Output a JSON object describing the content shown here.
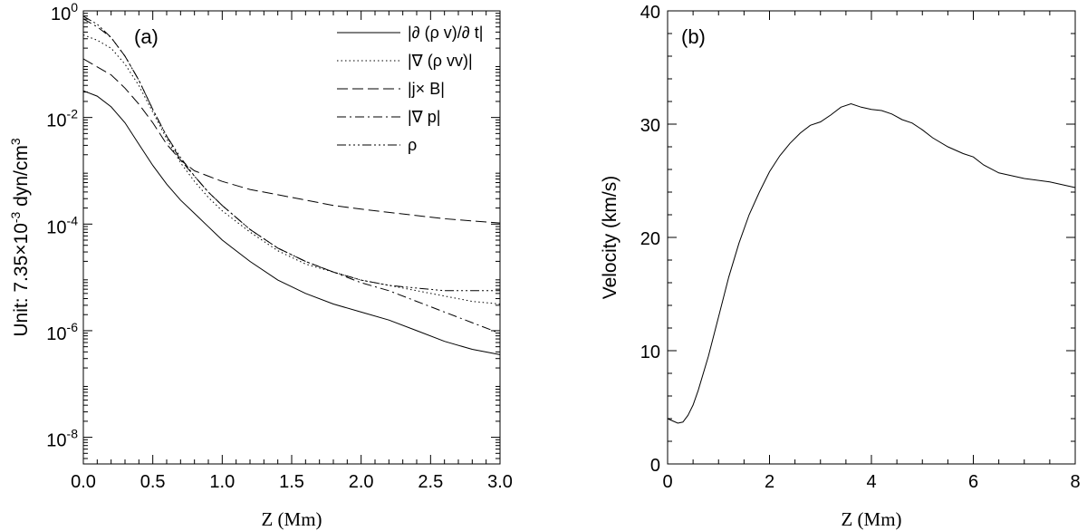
{
  "chart_data": [
    {
      "type": "line",
      "panel_label": "(a)",
      "xlabel": "Z (Mm)",
      "ylabel_prefix": "Unit: 7.35",
      "ylabel_times": "×",
      "ylabel_base": "10",
      "ylabel_exp": "-3",
      "ylabel_unit": " dyn/cm",
      "ylabel_unit_exp": "3",
      "xlim": [
        0,
        3
      ],
      "ylim_log10": [
        -8.5,
        0
      ],
      "yscale": "log",
      "x_ticks": [
        {
          "v": 0.0,
          "label": "0.0"
        },
        {
          "v": 0.5,
          "label": "0.5"
        },
        {
          "v": 1.0,
          "label": "1.0"
        },
        {
          "v": 1.5,
          "label": "1.5"
        },
        {
          "v": 2.0,
          "label": "2.0"
        },
        {
          "v": 2.5,
          "label": "2.5"
        },
        {
          "v": 3.0,
          "label": "3.0"
        }
      ],
      "y_ticks": [
        {
          "v": 0,
          "base": "10",
          "exp": "0"
        },
        {
          "v": -2,
          "base": "10",
          "exp": "-2"
        },
        {
          "v": -4,
          "base": "10",
          "exp": "-4"
        },
        {
          "v": -6,
          "base": "10",
          "exp": "-6"
        },
        {
          "v": -8,
          "base": "10",
          "exp": "-8"
        }
      ],
      "legend_position": "top-right",
      "x": [
        0,
        0.1,
        0.2,
        0.3,
        0.4,
        0.5,
        0.6,
        0.7,
        0.8,
        0.9,
        1.0,
        1.2,
        1.4,
        1.6,
        1.8,
        2.0,
        2.2,
        2.4,
        2.6,
        2.8,
        3.0
      ],
      "series": [
        {
          "name": "|∂ (ρ v)/∂ t|",
          "dash": "",
          "values_log10": [
            -1.5,
            -1.6,
            -1.8,
            -2.1,
            -2.5,
            -2.9,
            -3.25,
            -3.55,
            -3.8,
            -4.05,
            -4.3,
            -4.7,
            -5.05,
            -5.3,
            -5.5,
            -5.65,
            -5.8,
            -6.0,
            -6.2,
            -6.35,
            -6.45
          ]
        },
        {
          "name": "|∇ (ρ vv)|",
          "dash": "1.5 3",
          "values_log10": [
            -0.45,
            -0.55,
            -0.7,
            -1.0,
            -1.4,
            -1.9,
            -2.4,
            -2.85,
            -3.2,
            -3.5,
            -3.75,
            -4.15,
            -4.5,
            -4.75,
            -4.9,
            -5.05,
            -5.15,
            -5.25,
            -5.35,
            -5.45,
            -5.5
          ]
        },
        {
          "name": "|j× B|",
          "dash": "12 5",
          "values_log10": [
            -0.9,
            -1.05,
            -1.2,
            -1.45,
            -1.75,
            -2.1,
            -2.5,
            -2.8,
            -3.0,
            -3.1,
            -3.2,
            -3.35,
            -3.45,
            -3.55,
            -3.65,
            -3.72,
            -3.78,
            -3.84,
            -3.9,
            -3.94,
            -3.98
          ]
        },
        {
          "name": "|∇ p|",
          "dash": "10 4 2 4",
          "values_log10": [
            -0.15,
            -0.3,
            -0.5,
            -0.85,
            -1.3,
            -1.85,
            -2.35,
            -2.8,
            -3.1,
            -3.4,
            -3.65,
            -4.1,
            -4.45,
            -4.7,
            -4.9,
            -5.1,
            -5.25,
            -5.45,
            -5.65,
            -5.85,
            -6.05
          ]
        },
        {
          "name": "ρ",
          "dash": "10 3 2 3 2 3 2 3",
          "values_log10": [
            -0.1,
            -0.25,
            -0.5,
            -0.85,
            -1.3,
            -1.85,
            -2.35,
            -2.75,
            -3.1,
            -3.4,
            -3.65,
            -4.1,
            -4.45,
            -4.7,
            -4.9,
            -5.05,
            -5.15,
            -5.2,
            -5.25,
            -5.25,
            -5.25
          ]
        }
      ]
    },
    {
      "type": "line",
      "panel_label": "(b)",
      "xlabel": "Z (Mm)",
      "ylabel": "Velocity (km/s)",
      "xlim": [
        0,
        8
      ],
      "ylim": [
        0,
        40
      ],
      "x_ticks": [
        {
          "v": 0,
          "label": "0"
        },
        {
          "v": 2,
          "label": "2"
        },
        {
          "v": 4,
          "label": "4"
        },
        {
          "v": 6,
          "label": "6"
        },
        {
          "v": 8,
          "label": "8"
        }
      ],
      "y_ticks": [
        {
          "v": 0,
          "label": "0"
        },
        {
          "v": 10,
          "label": "10"
        },
        {
          "v": 20,
          "label": "20"
        },
        {
          "v": 30,
          "label": "30"
        },
        {
          "v": 40,
          "label": "40"
        }
      ],
      "series": [
        {
          "name": "velocity",
          "x": [
            0,
            0.1,
            0.2,
            0.3,
            0.4,
            0.5,
            0.6,
            0.8,
            1.0,
            1.2,
            1.4,
            1.6,
            1.8,
            2.0,
            2.2,
            2.4,
            2.6,
            2.8,
            3.0,
            3.2,
            3.4,
            3.6,
            3.8,
            4.0,
            4.2,
            4.4,
            4.6,
            4.8,
            5.0,
            5.2,
            5.5,
            5.8,
            6.0,
            6.2,
            6.5,
            7.0,
            7.5,
            8.0
          ],
          "y": [
            4.0,
            3.8,
            3.6,
            3.7,
            4.3,
            5.2,
            6.5,
            9.5,
            13.0,
            16.5,
            19.5,
            22.0,
            24.0,
            25.8,
            27.2,
            28.3,
            29.2,
            29.9,
            30.2,
            30.8,
            31.5,
            31.8,
            31.5,
            31.3,
            31.2,
            30.9,
            30.4,
            30.1,
            29.5,
            28.8,
            28.0,
            27.4,
            27.1,
            26.4,
            25.7,
            25.2,
            24.9,
            24.4
          ]
        }
      ]
    }
  ]
}
